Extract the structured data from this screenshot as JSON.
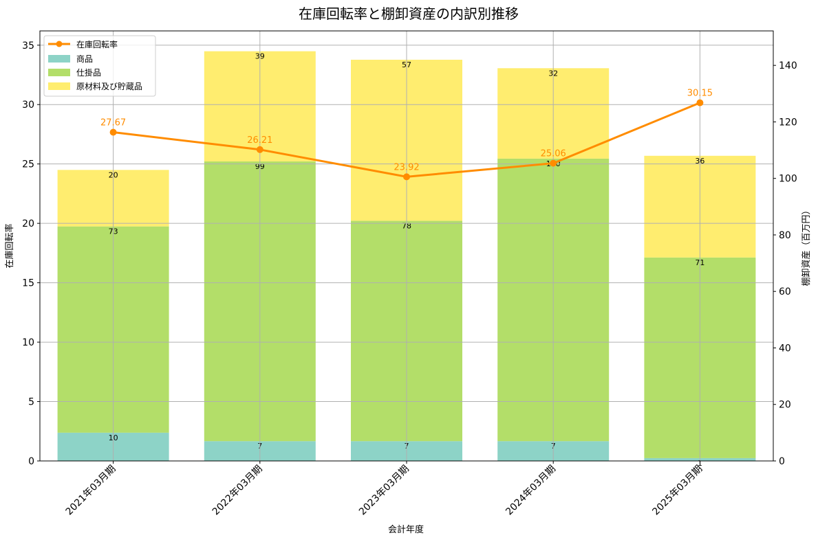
{
  "chart_data": {
    "type": "bar",
    "title": "在庫回転率と棚卸資産の内訳別推移",
    "xlabel": "会計年度",
    "ylabel": "在庫回転率",
    "y2label": "棚卸資産（百万円）",
    "categories": [
      "2021年03月期",
      "2022年03月期",
      "2023年03月期",
      "2024年03月期",
      "2025年03月期"
    ],
    "ylim": [
      0,
      36.2
    ],
    "y2lim": [
      0,
      152.2
    ],
    "yticks": [
      0,
      5,
      10,
      15,
      20,
      25,
      30,
      35
    ],
    "y2ticks": [
      0,
      20,
      40,
      60,
      80,
      100,
      120,
      140
    ],
    "grid": true,
    "legend_position": "top-left",
    "series": [
      {
        "name": "商品",
        "axis": "right",
        "color": "#8dd3c7",
        "values": [
          10,
          7,
          7,
          7,
          1
        ]
      },
      {
        "name": "仕掛品",
        "axis": "right",
        "color": "#b3de69",
        "values": [
          73,
          99,
          78,
          100,
          71
        ]
      },
      {
        "name": "原材料及び貯蔵品",
        "axis": "right",
        "color": "#ffed6f",
        "values": [
          20,
          39,
          57,
          32,
          36
        ]
      }
    ],
    "line": {
      "name": "在庫回転率",
      "axis": "left",
      "color": "#ff8c00",
      "values": [
        27.67,
        26.21,
        23.92,
        25.06,
        30.15
      ],
      "labels": [
        "27.67",
        "26.21",
        "23.92",
        "25.06",
        "30.15"
      ]
    }
  }
}
